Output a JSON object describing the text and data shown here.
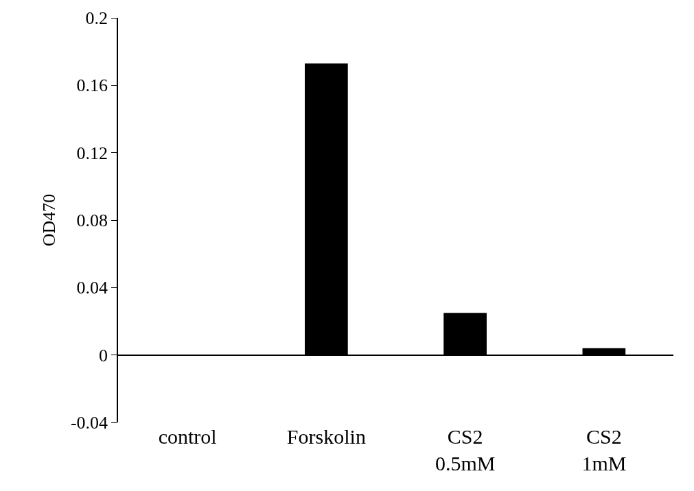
{
  "chart_data": {
    "type": "bar",
    "ylabel": "OD470",
    "categories": [
      "control",
      "Forskolin",
      "CS2\n0.5mM",
      "CS2\n1mM"
    ],
    "values": [
      -0.0003,
      0.173,
      0.025,
      0.004
    ],
    "color": "#000000",
    "ylim": [
      -0.04,
      0.2
    ],
    "yticks": [
      -0.04,
      0,
      0.04,
      0.08,
      0.12,
      0.16,
      0.2
    ]
  }
}
